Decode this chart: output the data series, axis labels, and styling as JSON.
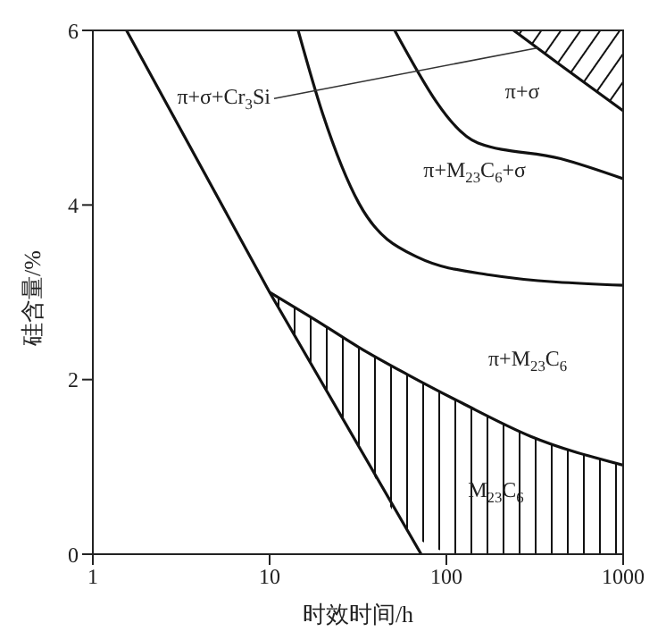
{
  "chart_data": {
    "type": "line",
    "xlabel": "时效时间/h",
    "ylabel": "硅含量/%",
    "log": "x",
    "xlim": [
      1,
      1000
    ],
    "xticks": [
      1,
      10,
      100,
      1000
    ],
    "ylim": [
      0,
      6
    ],
    "yticks": [
      0,
      2,
      4,
      6
    ],
    "marker": "none",
    "line_style": "solid",
    "series": [
      {
        "color": "#111111",
        "x": [
          1.55,
          10,
          72
        ],
        "values": [
          6,
          3,
          0
        ]
      },
      {
        "color": "#111111",
        "x": [
          10,
          20,
          32,
          60,
          123,
          300,
          1000
        ],
        "values": [
          3,
          2.63,
          2.37,
          2.06,
          1.73,
          1.35,
          1.02
        ],
        "lower": [
          3,
          1.95,
          1.23,
          0.28,
          0,
          0,
          0
        ],
        "upper": [
          3,
          2.63,
          2.37,
          2.06,
          1.73,
          1.35,
          1.02
        ]
      },
      {
        "color": "#111111",
        "x": [
          14.5,
          20,
          32,
          69,
          175,
          1000
        ],
        "values": [
          6,
          5.04,
          4.02,
          3.4,
          3.2,
          3.08
        ]
      },
      {
        "color": "#111111",
        "x": [
          51,
          151,
          443,
          1000
        ],
        "values": [
          6,
          4.71,
          4.53,
          4.3
        ]
      },
      {
        "color": "#111111",
        "x": [
          240,
          443,
          1000
        ],
        "values": [
          6,
          5.6,
          5.08
        ],
        "lower": [
          6,
          5.6,
          5.08
        ],
        "upper": [
          6,
          6,
          6
        ]
      }
    ],
    "annotations": [
      "π+σ",
      "π+M$_{23}$C$_{6}$+σ",
      "π+M$_{23}$C$_{6}$",
      "M$_{23}$C$_{6}$",
      {
        "text": "π+σ+Cr$_{3}$Si",
        "x": 330,
        "y": 5.8
      }
    ]
  }
}
